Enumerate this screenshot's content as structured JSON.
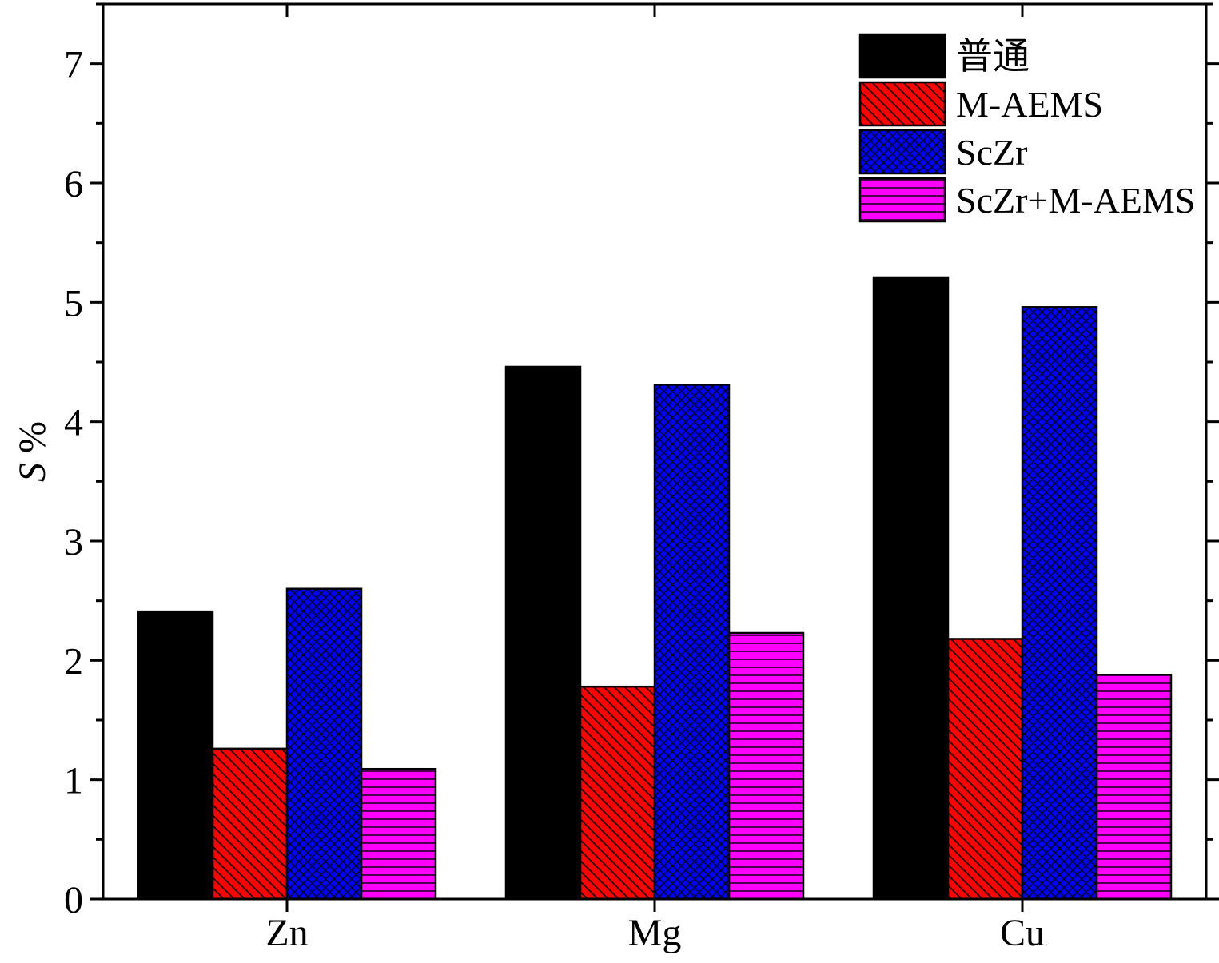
{
  "chart_data": {
    "type": "bar",
    "categories": [
      "Zn",
      "Mg",
      "Cu"
    ],
    "series": [
      {
        "name": "普通",
        "values": [
          2.41,
          4.46,
          5.21
        ],
        "color": "#000000",
        "pattern": "solid"
      },
      {
        "name": "M-AEMS",
        "values": [
          1.26,
          1.78,
          2.18
        ],
        "color": "#ff0000",
        "pattern": "diagonal-hatch"
      },
      {
        "name": "ScZr",
        "values": [
          2.6,
          4.31,
          4.96
        ],
        "color": "#0000ff",
        "pattern": "crosshatch"
      },
      {
        "name": "ScZr+M-AEMS",
        "values": [
          1.09,
          2.23,
          1.88
        ],
        "color": "#ff00ff",
        "pattern": "horizontal-lines"
      }
    ],
    "ylabel": {
      "italic": "S",
      "rest": " %"
    },
    "xlabel": "",
    "ylim": [
      0,
      7.5
    ],
    "yticks": [
      0,
      1,
      2,
      3,
      4,
      5,
      6,
      7
    ],
    "legend_position": "top-right",
    "grid": false
  }
}
